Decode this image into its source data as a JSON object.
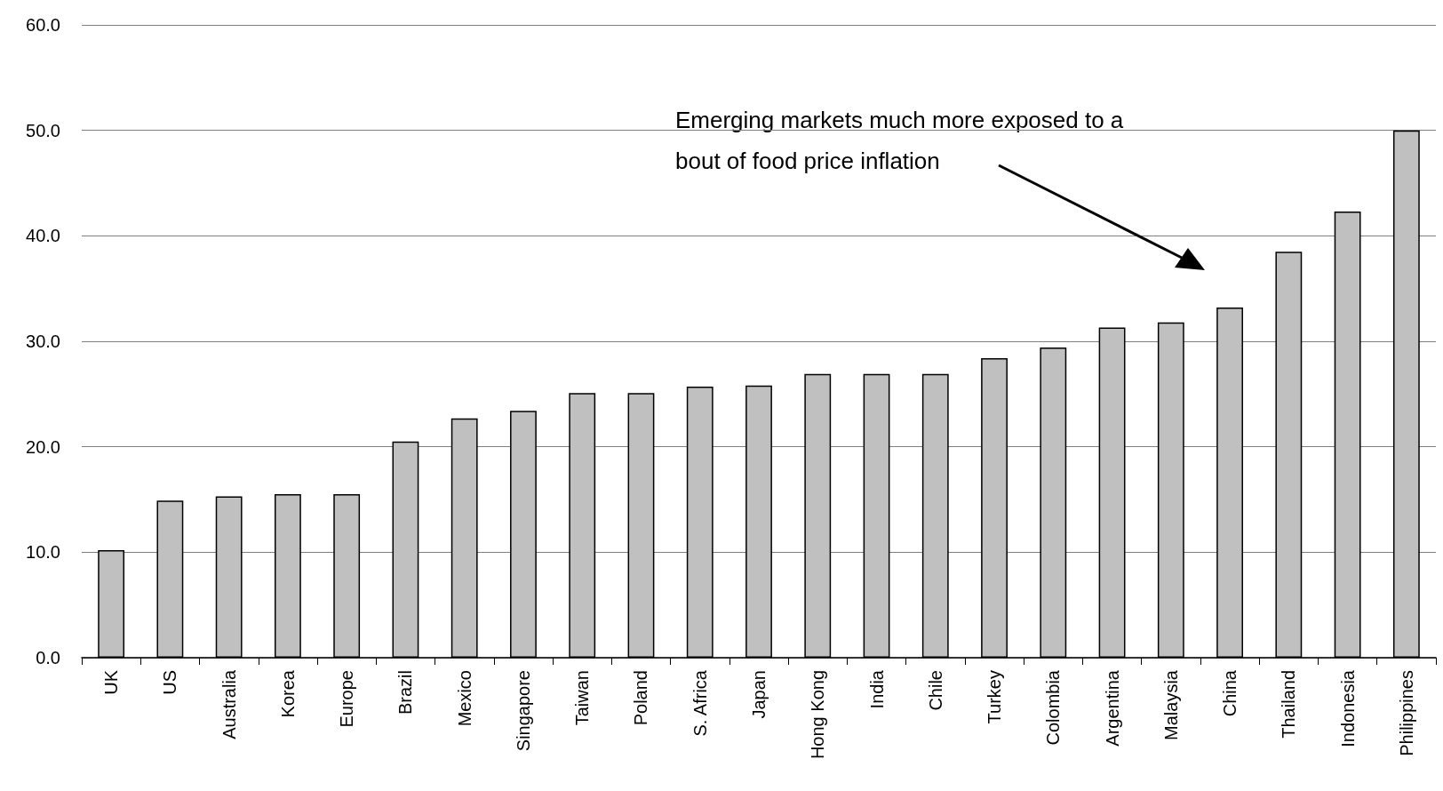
{
  "chart_data": {
    "type": "bar",
    "categories": [
      "UK",
      "US",
      "Australia",
      "Korea",
      "Europe",
      "Brazil",
      "Mexico",
      "Singapore",
      "Taiwan",
      "Poland",
      "S. Africa",
      "Japan",
      "Hong Kong",
      "India",
      "Chile",
      "Turkey",
      "Colombia",
      "Argentina",
      "Malaysia",
      "China",
      "Thailand",
      "Indonesia",
      "Philippines"
    ],
    "values": [
      10.2,
      14.9,
      15.3,
      15.5,
      15.5,
      20.5,
      22.7,
      23.4,
      25.1,
      25.1,
      25.7,
      25.8,
      26.9,
      26.9,
      26.9,
      28.4,
      29.4,
      31.3,
      31.8,
      33.2,
      38.5,
      42.3,
      50.0
    ],
    "color": "#c0c0c0",
    "ylim": [
      0,
      60
    ],
    "yticks": [
      {
        "value": 0,
        "label": "0.0"
      },
      {
        "value": 10,
        "label": "10.0"
      },
      {
        "value": 20,
        "label": "20.0"
      },
      {
        "value": 30,
        "label": "30.0"
      },
      {
        "value": 40,
        "label": "40.0"
      },
      {
        "value": 50,
        "label": "50.0"
      },
      {
        "value": 60,
        "label": "60.0"
      }
    ],
    "grid": "y",
    "annotations": [
      "Emerging markets much more exposed to a bout of food price inflation"
    ]
  }
}
